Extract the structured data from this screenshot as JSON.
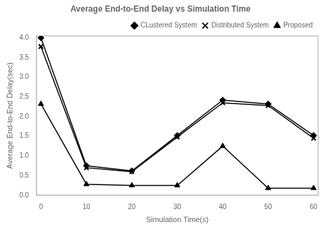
{
  "chart_data": {
    "type": "line",
    "title": "Average End-to-End Delay vs Simulation Time",
    "xlabel": "Simulation Time(s)",
    "ylabel": "Average End-to-End Delay(sec)",
    "x": [
      0,
      10,
      20,
      30,
      40,
      50,
      60
    ],
    "series": [
      {
        "name": "CLustered System",
        "color": "black",
        "marker": "diamond",
        "values": [
          4.0,
          0.75,
          0.62,
          1.52,
          2.42,
          2.32,
          1.52
        ]
      },
      {
        "name": "Distributed System",
        "color": "black",
        "marker": "x",
        "values": [
          3.78,
          0.7,
          0.6,
          1.48,
          2.35,
          2.28,
          1.45
        ]
      },
      {
        "name": "Proposed",
        "color": "black",
        "marker": "triangle",
        "values": [
          2.32,
          0.28,
          0.25,
          0.25,
          1.25,
          0.18,
          0.18
        ]
      }
    ],
    "xlim": [
      -1,
      61
    ],
    "ylim": [
      0,
      4.05
    ],
    "xticks": [
      0,
      10,
      20,
      30,
      40,
      50,
      60
    ],
    "yticks": [
      {
        "value": 0,
        "label": "0.0"
      },
      0.5,
      {
        "value": 1,
        "label": "1.0"
      },
      1.5,
      {
        "value": 2,
        "label": "2.0"
      },
      2.5,
      {
        "value": 3,
        "label": "3.0"
      },
      3.5,
      {
        "value": 4,
        "label": "4.0"
      }
    ],
    "grid": false,
    "legend": "upper right"
  }
}
